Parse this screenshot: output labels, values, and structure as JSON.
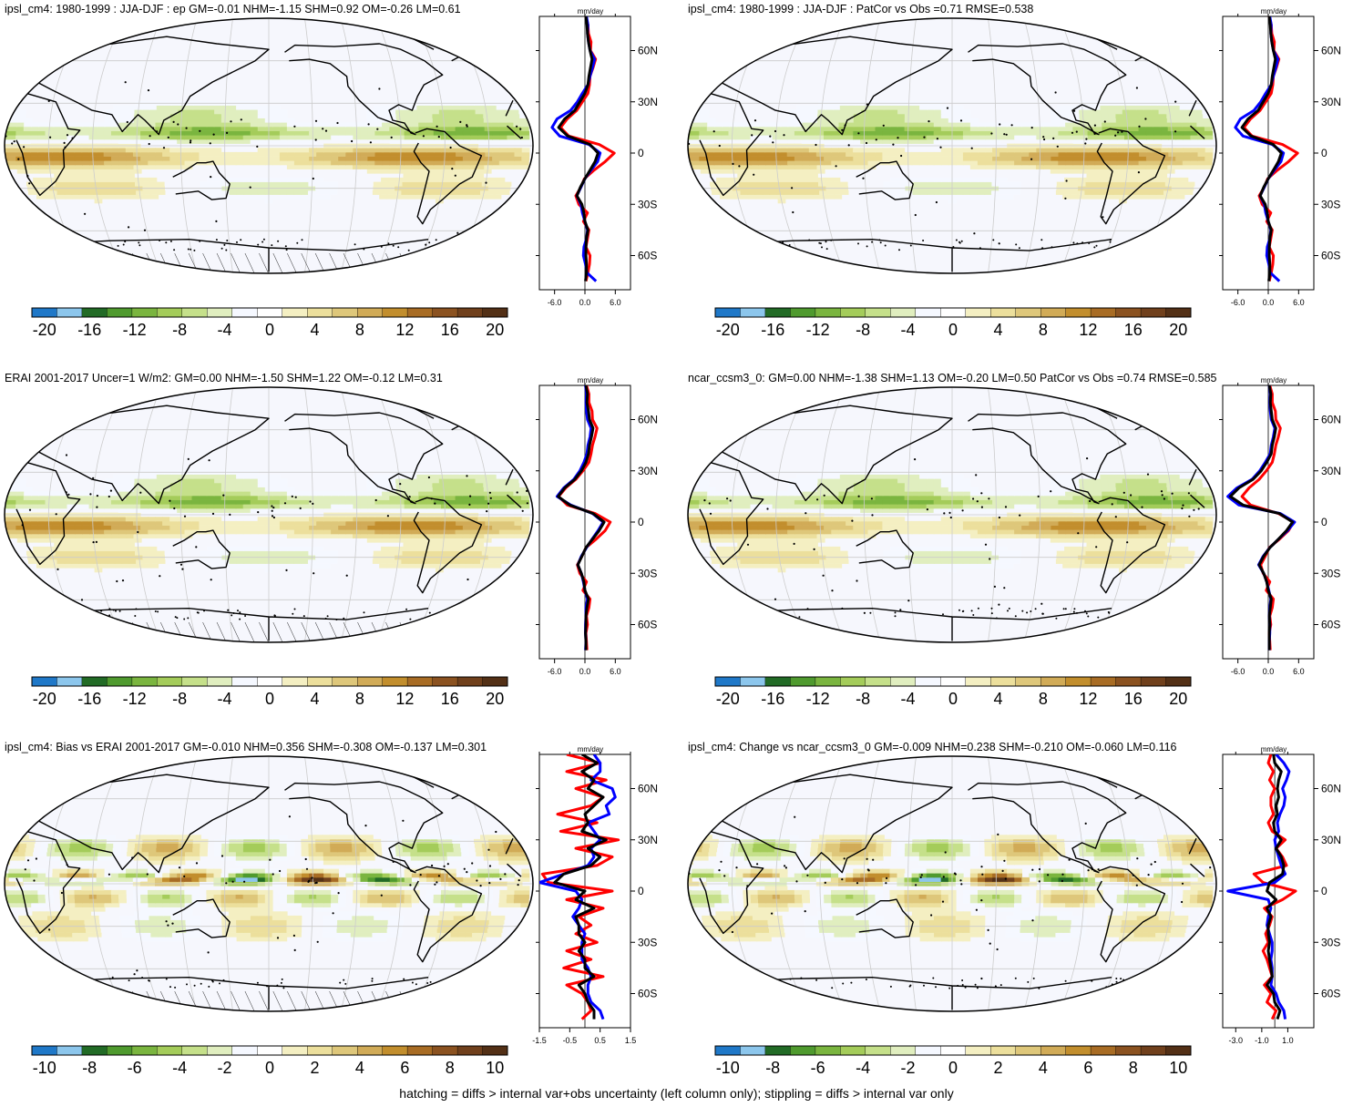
{
  "footer": "hatching = diffs > internal var+obs uncertainty (left column only); stippling = diffs > internal var only",
  "colors": {
    "scale": [
      "#1f78c8",
      "#8cc6ec",
      "#226b26",
      "#4f9a2e",
      "#7ab53f",
      "#a4cc5a",
      "#c5e08a",
      "#e0eebf",
      "#f5f8ff",
      "#ffffff",
      "#f4efc2",
      "#ecdf9c",
      "#dec77a",
      "#d1ab57",
      "#c28e2d",
      "#a86c24",
      "#8b5220",
      "#70401c",
      "#533016"
    ],
    "land_outline": "#000000",
    "ocean": "#f6f7fd",
    "grid": "#cccccc",
    "series": [
      "#ff0000",
      "#0000ff",
      "#000000"
    ]
  },
  "panels": [
    {
      "title": "ipsl_cm4: 1980-1999 : JJA-DJF : ep GM=-0.01 NHM=-1.15 SHM=0.92 OM=-0.26 LM=0.61",
      "colorbar_labels": [
        "-20",
        "-16",
        "-12",
        "-8",
        "-4",
        "0",
        "4",
        "8",
        "12",
        "16",
        "20"
      ],
      "hatching": true,
      "field_amp": 1.0
    },
    {
      "title": "ipsl_cm4: 1980-1999 : JJA-DJF : PatCor vs Obs =0.71 RMSE=0.538",
      "colorbar_labels": [
        "-20",
        "-16",
        "-12",
        "-8",
        "-4",
        "0",
        "4",
        "8",
        "12",
        "16",
        "20"
      ],
      "hatching": false,
      "field_amp": 1.0
    },
    {
      "title": "ERAI 2001-2017 Uncer=1 W/m2: GM=0.00 NHM=-1.50 SHM=1.22 OM=-0.12 LM=0.31",
      "colorbar_labels": [
        "-20",
        "-16",
        "-12",
        "-8",
        "-4",
        "0",
        "4",
        "8",
        "12",
        "16",
        "20"
      ],
      "hatching": true,
      "field_amp": 1.0
    },
    {
      "title": "ncar_ccsm3_0: GM=0.00 NHM=-1.38 SHM=1.13 OM=-0.20 LM=0.50 PatCor vs Obs =0.74 RMSE=0.585",
      "colorbar_labels": [
        "-20",
        "-16",
        "-12",
        "-8",
        "-4",
        "0",
        "4",
        "8",
        "12",
        "16",
        "20"
      ],
      "hatching": false,
      "field_amp": 1.0
    },
    {
      "title": "ipsl_cm4: Bias vs ERAI 2001-2017 GM=-0.010 NHM=0.356 SHM=-0.308 OM=-0.137 LM=0.301",
      "colorbar_labels": [
        "-10",
        "-8",
        "-6",
        "-4",
        "-2",
        "0",
        "2",
        "4",
        "6",
        "8",
        "10"
      ],
      "hatching": true,
      "field_amp": 1.0
    },
    {
      "title": "ipsl_cm4: Change vs ncar_ccsm3_0 GM=-0.009 NHM=0.238 SHM=-0.210 OM=-0.060 LM=0.116",
      "colorbar_labels": [
        "-10",
        "-8",
        "-6",
        "-4",
        "-2",
        "0",
        "2",
        "4",
        "6",
        "8",
        "10"
      ],
      "hatching": false,
      "field_amp": 1.0
    }
  ],
  "chart_data": [
    {
      "type": "line",
      "title": "mm/day",
      "y_axis_labels": [
        "60N",
        "30N",
        "0",
        "30S",
        "60S"
      ],
      "y_ticks": [
        60,
        30,
        0,
        -30,
        -60
      ],
      "xlim": [
        -9,
        9
      ],
      "ylim": [
        -80,
        80
      ],
      "x_ticks": [
        -6,
        0,
        6
      ],
      "x_tick_labels": [
        "-6.0",
        "0.0",
        "6.0"
      ],
      "lat": [
        -75,
        -70,
        -65,
        -60,
        -55,
        -50,
        -45,
        -40,
        -35,
        -30,
        -25,
        -20,
        -15,
        -10,
        -5,
        0,
        5,
        10,
        15,
        20,
        25,
        30,
        35,
        40,
        45,
        50,
        55,
        60,
        65,
        70,
        75,
        80
      ],
      "series": [
        {
          "values": [
            0.2,
            0.6,
            0.9,
            1.0,
            0.2,
            0.5,
            0.8,
            -0.3,
            0.5,
            -1.2,
            -1.8,
            -0.8,
            -0.1,
            1.8,
            4.0,
            5.8,
            2.8,
            -3.2,
            -4.8,
            -3.5,
            -1.6,
            -0.5,
            0.6,
            0.9,
            1.0,
            1.6,
            2.1,
            1.1,
            1.2,
            0.7,
            0.6,
            0.2
          ]
        },
        {
          "values": [
            2.2,
            0.4,
            0.1,
            -0.3,
            -0.2,
            0.3,
            0.5,
            0.0,
            -0.5,
            -0.8,
            -1.6,
            -0.8,
            0.0,
            1.2,
            2.5,
            3.0,
            0.8,
            -5.0,
            -6.5,
            -5.5,
            -2.8,
            -1.5,
            -0.5,
            0.6,
            1.0,
            1.5,
            1.9,
            1.0,
            0.7,
            0.5,
            0.6,
            0.3
          ]
        },
        {
          "values": [
            0.1,
            0.3,
            0.3,
            0.2,
            0.2,
            0.3,
            0.6,
            0.0,
            -0.2,
            -0.6,
            -1.6,
            -0.9,
            0.0,
            1.0,
            2.0,
            2.6,
            1.0,
            -3.4,
            -5.2,
            -4.0,
            -2.0,
            -1.0,
            0.0,
            0.6,
            0.8,
            1.1,
            1.4,
            1.0,
            0.7,
            0.5,
            0.4,
            0.2
          ]
        }
      ]
    },
    {
      "type": "line",
      "title": "mm/day",
      "y_axis_labels": [
        "60N",
        "30N",
        "0",
        "30S",
        "60S"
      ],
      "y_ticks": [
        60,
        30,
        0,
        -30,
        -60
      ],
      "xlim": [
        -9,
        9
      ],
      "ylim": [
        -80,
        80
      ],
      "x_ticks": [
        -6,
        0,
        6
      ],
      "x_tick_labels": [
        "-6.0",
        "0.0",
        "6.0"
      ],
      "lat": [
        -75,
        -70,
        -65,
        -60,
        -55,
        -50,
        -45,
        -40,
        -35,
        -30,
        -25,
        -20,
        -15,
        -10,
        -5,
        0,
        5,
        10,
        15,
        20,
        25,
        30,
        35,
        40,
        45,
        50,
        55,
        60,
        65,
        70,
        75,
        80
      ],
      "series": [
        {
          "values": [
            0.2,
            0.6,
            0.9,
            1.0,
            0.2,
            0.5,
            0.8,
            -0.3,
            0.5,
            -1.2,
            -1.8,
            -0.8,
            -0.1,
            1.8,
            4.0,
            5.8,
            2.8,
            -3.2,
            -4.8,
            -3.5,
            -1.6,
            -0.5,
            0.6,
            0.9,
            1.0,
            1.6,
            2.1,
            1.1,
            1.2,
            0.7,
            0.6,
            0.2
          ]
        },
        {
          "values": [
            2.2,
            0.4,
            0.1,
            -0.3,
            -0.2,
            0.3,
            0.5,
            0.0,
            -0.5,
            -0.8,
            -1.6,
            -0.8,
            0.0,
            1.2,
            2.5,
            3.0,
            0.8,
            -5.0,
            -6.5,
            -5.5,
            -2.8,
            -1.5,
            -0.5,
            0.6,
            1.0,
            1.5,
            1.9,
            1.0,
            0.7,
            0.5,
            0.6,
            0.3
          ]
        },
        {
          "values": [
            0.1,
            0.3,
            0.3,
            0.2,
            0.2,
            0.3,
            0.6,
            0.0,
            -0.2,
            -0.6,
            -1.6,
            -0.9,
            0.0,
            1.0,
            2.0,
            2.6,
            1.0,
            -3.4,
            -5.2,
            -4.0,
            -2.0,
            -1.0,
            0.0,
            0.6,
            0.8,
            1.1,
            1.4,
            1.0,
            0.7,
            0.5,
            0.4,
            0.2
          ]
        }
      ]
    },
    {
      "type": "line",
      "title": "mm/day",
      "y_axis_labels": [
        "60N",
        "30N",
        "0",
        "30S",
        "60S"
      ],
      "y_ticks": [
        60,
        30,
        0,
        -30,
        -60
      ],
      "xlim": [
        -9,
        9
      ],
      "ylim": [
        -80,
        80
      ],
      "x_ticks": [
        -6,
        0,
        6
      ],
      "x_tick_labels": [
        "-6.0",
        "0.0",
        "6.0"
      ],
      "lat": [
        -75,
        -70,
        -65,
        -60,
        -55,
        -50,
        -45,
        -40,
        -35,
        -30,
        -25,
        -20,
        -15,
        -10,
        -5,
        0,
        5,
        10,
        15,
        20,
        25,
        30,
        35,
        40,
        45,
        50,
        55,
        60,
        65,
        70,
        75,
        80
      ],
      "series": [
        {
          "values": [
            0.4,
            0.3,
            0.2,
            0.5,
            0.3,
            0.8,
            1.0,
            -0.4,
            0.3,
            -1.0,
            -1.5,
            -0.6,
            0.2,
            2.2,
            4.0,
            5.0,
            2.0,
            -3.5,
            -5.2,
            -3.8,
            -1.8,
            -0.4,
            0.8,
            1.2,
            1.5,
            2.0,
            2.4,
            1.5,
            1.4,
            0.8,
            0.8,
            0.3
          ]
        },
        {
          "values": [
            0.1,
            0.2,
            0.1,
            0.1,
            0.2,
            0.2,
            0.5,
            0.0,
            -0.3,
            -0.7,
            -1.4,
            -0.7,
            0.3,
            1.4,
            2.6,
            3.6,
            1.5,
            -2.8,
            -5.5,
            -4.2,
            -2.2,
            -1.0,
            -0.2,
            0.4,
            0.6,
            1.0,
            1.2,
            0.5,
            0.3,
            0.2,
            0.3,
            0.1
          ]
        },
        {
          "values": [
            0.2,
            0.2,
            0.1,
            0.2,
            0.2,
            0.4,
            0.7,
            0.0,
            -0.2,
            -0.7,
            -1.4,
            -0.6,
            0.2,
            1.5,
            2.8,
            3.8,
            1.6,
            -3.0,
            -5.3,
            -4.0,
            -2.0,
            -0.7,
            0.2,
            0.7,
            0.9,
            1.3,
            1.6,
            0.9,
            0.7,
            0.4,
            0.5,
            0.2
          ]
        }
      ]
    },
    {
      "type": "line",
      "title": "mm/day",
      "y_axis_labels": [
        "60N",
        "30N",
        "0",
        "30S",
        "60S"
      ],
      "y_ticks": [
        60,
        30,
        0,
        -30,
        -60
      ],
      "xlim": [
        -9,
        9
      ],
      "ylim": [
        -80,
        80
      ],
      "x_ticks": [
        -6,
        0,
        6
      ],
      "x_tick_labels": [
        "-6.0",
        "0.0",
        "6.0"
      ],
      "lat": [
        -75,
        -70,
        -65,
        -60,
        -55,
        -50,
        -45,
        -40,
        -35,
        -30,
        -25,
        -20,
        -15,
        -10,
        -5,
        0,
        5,
        10,
        15,
        20,
        25,
        30,
        35,
        40,
        45,
        50,
        55,
        60,
        65,
        70,
        75,
        80
      ],
      "series": [
        {
          "values": [
            0.4,
            0.3,
            0.2,
            0.5,
            0.3,
            0.8,
            1.0,
            -0.4,
            0.3,
            -1.0,
            -1.5,
            -0.6,
            0.2,
            2.2,
            4.0,
            5.0,
            2.0,
            -3.5,
            -5.2,
            -3.8,
            -1.8,
            -0.4,
            0.8,
            1.2,
            1.5,
            2.0,
            2.4,
            1.5,
            1.4,
            0.8,
            0.8,
            0.3
          ]
        },
        {
          "values": [
            0.2,
            0.2,
            0.3,
            0.3,
            0.2,
            0.3,
            0.5,
            0.1,
            -0.3,
            -0.9,
            -1.9,
            -1.0,
            0.3,
            2.0,
            3.8,
            5.2,
            2.4,
            -5.8,
            -8.0,
            -6.2,
            -3.2,
            -1.7,
            -0.6,
            0.4,
            0.6,
            1.0,
            1.3,
            0.6,
            0.4,
            0.3,
            0.4,
            0.2
          ]
        },
        {
          "values": [
            0.2,
            0.2,
            0.2,
            0.3,
            0.2,
            0.4,
            0.6,
            0.0,
            -0.3,
            -0.9,
            -1.8,
            -0.9,
            0.3,
            2.0,
            3.6,
            4.8,
            2.2,
            -5.0,
            -7.5,
            -5.8,
            -3.0,
            -1.4,
            -0.3,
            0.6,
            0.8,
            1.2,
            1.5,
            0.8,
            0.6,
            0.4,
            0.5,
            0.2
          ]
        }
      ]
    },
    {
      "type": "line",
      "title": "mm/day",
      "y_axis_labels": [
        "60N",
        "30N",
        "0",
        "30S",
        "60S"
      ],
      "y_ticks": [
        60,
        30,
        0,
        -30,
        -60
      ],
      "xlim": [
        -1.5,
        1.5
      ],
      "ylim": [
        -80,
        80
      ],
      "x_ticks": [
        -1.5,
        -0.5,
        0.5,
        1.5
      ],
      "x_tick_labels": [
        "-1.5",
        "-0.5",
        "0.5",
        "1.5"
      ],
      "lat": [
        -75,
        -70,
        -65,
        -60,
        -55,
        -50,
        -45,
        -40,
        -35,
        -30,
        -25,
        -20,
        -15,
        -10,
        -5,
        0,
        5,
        10,
        15,
        20,
        25,
        30,
        35,
        40,
        45,
        50,
        55,
        60,
        65,
        70,
        75,
        80
      ],
      "series": [
        {
          "values": [
            -0.1,
            0.2,
            0.1,
            -0.1,
            -0.6,
            0.6,
            -0.7,
            0.2,
            -0.6,
            0.4,
            -0.3,
            0.2,
            -0.2,
            0.6,
            -0.6,
            0.9,
            -1.2,
            -1.4,
            0.4,
            0.9,
            -0.3,
            1.1,
            -0.8,
            0.4,
            -0.9,
            0.2,
            0.6,
            -0.3,
            0.7,
            -0.6,
            0.5,
            -0.6
          ]
        },
        {
          "values": [
            0.6,
            0.5,
            0.2,
            0.1,
            0.1,
            0.2,
            0.1,
            -0.1,
            -0.1,
            -0.1,
            0.0,
            -0.2,
            -0.4,
            -0.2,
            -0.1,
            -0.3,
            -1.5,
            -0.7,
            0.1,
            0.3,
            0.2,
            0.5,
            0.3,
            0.1,
            0.8,
            0.7,
            1.0,
            0.9,
            0.2,
            0.5,
            0.5,
            0.3
          ]
        },
        {
          "values": [
            0.3,
            0.3,
            0.1,
            0.0,
            -0.2,
            0.3,
            0.0,
            0.0,
            -0.2,
            0.0,
            -0.2,
            -0.2,
            -0.3,
            0.3,
            -0.3,
            0.0,
            -1.0,
            -0.7,
            0.2,
            0.5,
            0.1,
            0.7,
            -0.1,
            0.1,
            0.0,
            0.3,
            0.6,
            0.1,
            0.3,
            -0.1,
            0.4,
            -0.1
          ]
        }
      ]
    },
    {
      "type": "line",
      "title": "mm/day",
      "y_axis_labels": [
        "60N",
        "30N",
        "0",
        "30S",
        "60S"
      ],
      "y_ticks": [
        60,
        30,
        0,
        -30,
        -60
      ],
      "xlim": [
        -4,
        3
      ],
      "ylim": [
        -80,
        80
      ],
      "x_ticks": [
        -3,
        -1,
        1
      ],
      "x_tick_labels": [
        "-3.0",
        "-1.0",
        "1.0"
      ],
      "lat": [
        -75,
        -70,
        -65,
        -60,
        -55,
        -50,
        -45,
        -40,
        -35,
        -30,
        -25,
        -20,
        -15,
        -10,
        -5,
        0,
        5,
        10,
        15,
        20,
        25,
        30,
        35,
        40,
        45,
        50,
        55,
        60,
        65,
        70,
        75,
        80
      ],
      "series": [
        {
          "values": [
            -0.2,
            0.1,
            -0.6,
            -0.3,
            -0.8,
            -0.2,
            -0.4,
            -0.6,
            -0.9,
            -0.5,
            -0.7,
            -0.4,
            -0.2,
            -0.8,
            0.6,
            1.6,
            -0.9,
            -1.6,
            0.9,
            0.6,
            0.1,
            0.8,
            -0.2,
            -0.5,
            -0.1,
            -0.3,
            -0.3,
            0.0,
            -0.4,
            -0.1,
            -0.5,
            -0.3
          ]
        },
        {
          "values": [
            0.8,
            0.7,
            0.3,
            0.1,
            -0.3,
            -0.2,
            -0.2,
            -0.3,
            -0.2,
            -0.2,
            -0.4,
            -0.6,
            -0.5,
            -0.3,
            -0.5,
            -3.6,
            0.0,
            0.8,
            0.5,
            0.3,
            0.1,
            0.0,
            0.3,
            0.2,
            0.4,
            0.7,
            0.8,
            0.6,
            0.9,
            1.1,
            0.7,
            0.1
          ]
        },
        {
          "values": [
            0.2,
            0.4,
            0.0,
            -0.1,
            -0.6,
            -0.2,
            -0.3,
            -0.4,
            -0.5,
            -0.4,
            -0.5,
            -0.5,
            -0.3,
            -0.6,
            0.1,
            -0.6,
            -0.4,
            0.6,
            0.7,
            0.5,
            0.1,
            0.5,
            0.0,
            -0.1,
            0.2,
            0.1,
            0.3,
            0.2,
            0.3,
            0.5,
            0.0,
            -0.1
          ]
        }
      ]
    }
  ]
}
